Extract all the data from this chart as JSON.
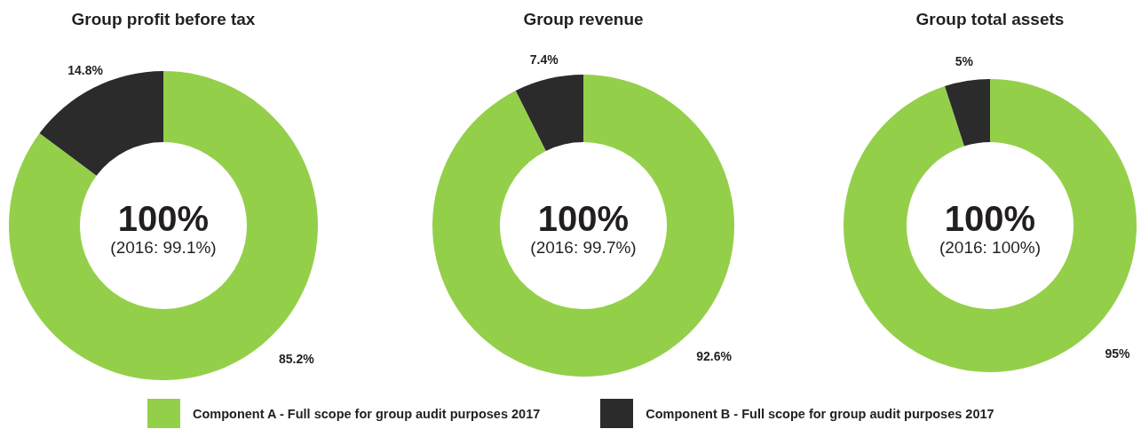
{
  "chart_data": [
    {
      "type": "donut",
      "title": "Group profit before tax",
      "categories": [
        null,
        null
      ],
      "values": [
        85.2,
        14.8
      ],
      "colors": [
        "#94cf4a",
        "#2b2b2b"
      ],
      "value_labels": [
        "85.2%",
        "14.8%"
      ],
      "annotations": [
        "100%",
        "(2016: 99.1%)"
      ]
    },
    {
      "type": "donut",
      "title": "Group revenue",
      "categories": [
        "Component A - Full scope for group audit purposes 2017",
        "Component B - Full scope for group audit purposes 2017"
      ],
      "values": [
        92.6,
        7.4
      ],
      "colors": [
        "#94cf4a",
        "#2b2b2b"
      ],
      "value_labels": [
        "92.6%",
        "7.4%"
      ],
      "annotations": [
        "100%",
        "(2016: 99.7%)"
      ],
      "legend": "bottom"
    },
    {
      "type": "donut",
      "title": "Group total assets",
      "categories": [
        null,
        null
      ],
      "values": [
        95,
        5
      ],
      "colors": [
        "#94cf4a",
        "#2b2b2b"
      ],
      "value_labels": [
        "95%",
        "5%"
      ],
      "annotations": [
        "100%",
        "(2016: 100%)"
      ]
    }
  ]
}
